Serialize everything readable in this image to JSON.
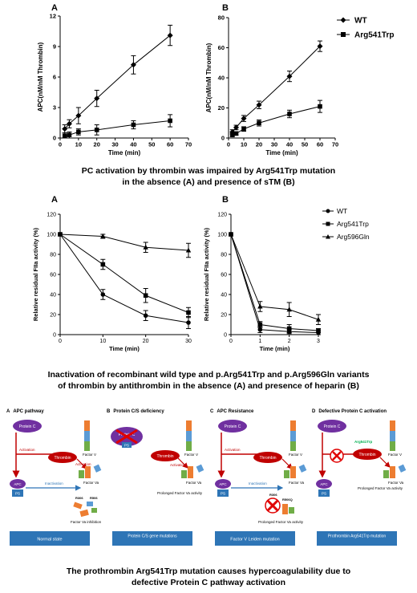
{
  "figure1": {
    "legend": {
      "wt": "WT",
      "mut": "Arg541Trp"
    },
    "caption": {
      "line1": "PC activation by thrombin was impaired by Arg541Trp mutation",
      "line2": "in the absence (A) and presence of sTM (B)"
    }
  },
  "figure2": {
    "legend": {
      "wt": "WT",
      "mut1": "Arg541Trp",
      "mut2": "Arg596Gln"
    },
    "caption": {
      "line1": "Inactivation of recombinant wild type and p.Arg541Trp and p.Arg596Gln variants",
      "line2": "of thrombin by antithrombin in the absence (A) and presence of heparin (B)"
    }
  },
  "figure3": {
    "panels": [
      {
        "letter": "A",
        "title": "APC pathway",
        "footer": "Normal state"
      },
      {
        "letter": "B",
        "title": "Protein C/S deficiency",
        "footer": "Protein C/S gene mutations"
      },
      {
        "letter": "C",
        "title": "APC Resistance",
        "footer": "Factor V Leiden mutation"
      },
      {
        "letter": "D",
        "title": "Defective Protein C activation",
        "footer": "Prothrombin Arg541Trp mutation"
      }
    ],
    "labels": {
      "protein_c": "Protein C",
      "thrombin": "Thrombin",
      "factor_v": "Factor V",
      "factor_va": "Factor Va",
      "activation": "Activation",
      "inactivation": "Inactivation",
      "apc": "APC",
      "ps": "PS",
      "r306": "R306",
      "r506": "R506",
      "r506q": "R506Q",
      "arg541trp": "Arg541Trp",
      "fva_inhibition": "Factor Va inhibition",
      "prolonged": "Prolonged Factor Va activity"
    },
    "caption": {
      "line1": "The prothrombin Arg541Trp mutation causes hypercoagulability due to",
      "line2": "defective Protein C pathway activation"
    }
  },
  "chart_data": [
    {
      "type": "line",
      "panel": "A",
      "xlabel": "Time (min)",
      "ylabel": "APC(nM/nM Thrombin)",
      "xlim": [
        0,
        70
      ],
      "ylim": [
        0,
        12
      ],
      "xticks": [
        0,
        10,
        20,
        30,
        40,
        50,
        60,
        70
      ],
      "yticks": [
        0,
        3,
        6,
        9,
        12
      ],
      "series": [
        {
          "name": "WT",
          "marker": "diamond",
          "x": [
            2.5,
            5,
            10,
            20,
            40,
            60
          ],
          "y": [
            0.9,
            1.4,
            2.2,
            3.9,
            7.2,
            10.1
          ],
          "err": [
            0.4,
            0.4,
            0.8,
            0.8,
            0.9,
            1.0
          ]
        },
        {
          "name": "Arg541Trp",
          "marker": "square",
          "x": [
            2.5,
            5,
            10,
            20,
            40,
            60
          ],
          "y": [
            0.2,
            0.3,
            0.6,
            0.8,
            1.3,
            1.7
          ],
          "err": [
            0.3,
            0.3,
            0.3,
            0.5,
            0.4,
            0.6
          ]
        }
      ]
    },
    {
      "type": "line",
      "panel": "B",
      "xlabel": "Time (min)",
      "ylabel": "APC(nM/nM Thrombin)",
      "xlim": [
        0,
        70
      ],
      "ylim": [
        0,
        80
      ],
      "xticks": [
        0,
        10,
        20,
        30,
        40,
        50,
        60,
        70
      ],
      "yticks": [
        0,
        20,
        40,
        60,
        80
      ],
      "series": [
        {
          "name": "WT",
          "marker": "diamond",
          "x": [
            2.5,
            5,
            10,
            20,
            40,
            60
          ],
          "y": [
            4,
            7,
            13,
            22,
            41,
            61
          ],
          "err": [
            1.5,
            1.5,
            2,
            2.5,
            3.5,
            3.5
          ]
        },
        {
          "name": "Arg541Trp",
          "marker": "square",
          "x": [
            2.5,
            5,
            10,
            20,
            40,
            60
          ],
          "y": [
            2,
            3,
            6,
            10,
            16,
            21
          ],
          "err": [
            1,
            1,
            1.5,
            2,
            2.5,
            4
          ]
        }
      ]
    },
    {
      "type": "line",
      "panel": "A",
      "xlabel": "Time (min)",
      "ylabel": "Relative residual FIIa activity (%)",
      "xlim": [
        0,
        30
      ],
      "ylim": [
        0,
        120
      ],
      "xticks": [
        0,
        10,
        20,
        30
      ],
      "yticks": [
        0,
        20,
        40,
        60,
        80,
        100,
        120
      ],
      "series": [
        {
          "name": "WT",
          "marker": "circle",
          "x": [
            0,
            10,
            20,
            30
          ],
          "y": [
            100,
            40,
            19,
            12
          ],
          "err": [
            0,
            5,
            5,
            6
          ]
        },
        {
          "name": "Arg541Trp",
          "marker": "square",
          "x": [
            0,
            10,
            20,
            30
          ],
          "y": [
            100,
            70,
            39,
            22
          ],
          "err": [
            0,
            5,
            7,
            5
          ]
        },
        {
          "name": "Arg596Gln",
          "marker": "triangle",
          "x": [
            0,
            10,
            20,
            30
          ],
          "y": [
            100,
            98,
            87,
            84
          ],
          "err": [
            0,
            2,
            5,
            7
          ]
        }
      ]
    },
    {
      "type": "line",
      "panel": "B",
      "xlabel": "Time (min)",
      "ylabel": "Relative residual FIIa activity (%)",
      "xlim": [
        0,
        3
      ],
      "ylim": [
        0,
        120
      ],
      "xticks": [
        0,
        1,
        2,
        3
      ],
      "yticks": [
        0,
        20,
        40,
        60,
        80,
        100,
        120
      ],
      "series": [
        {
          "name": "WT",
          "marker": "circle",
          "x": [
            0,
            1,
            2,
            3
          ],
          "y": [
            100,
            5,
            3,
            2
          ],
          "err": [
            0,
            3,
            2,
            2
          ]
        },
        {
          "name": "Arg541Trp",
          "marker": "square",
          "x": [
            0,
            1,
            2,
            3
          ],
          "y": [
            100,
            10,
            6,
            4
          ],
          "err": [
            0,
            3,
            4,
            2
          ]
        },
        {
          "name": "Arg596Gln",
          "marker": "triangle",
          "x": [
            0,
            1,
            2,
            3
          ],
          "y": [
            100,
            28,
            25,
            15
          ],
          "err": [
            0,
            5,
            7,
            5
          ]
        }
      ]
    }
  ]
}
